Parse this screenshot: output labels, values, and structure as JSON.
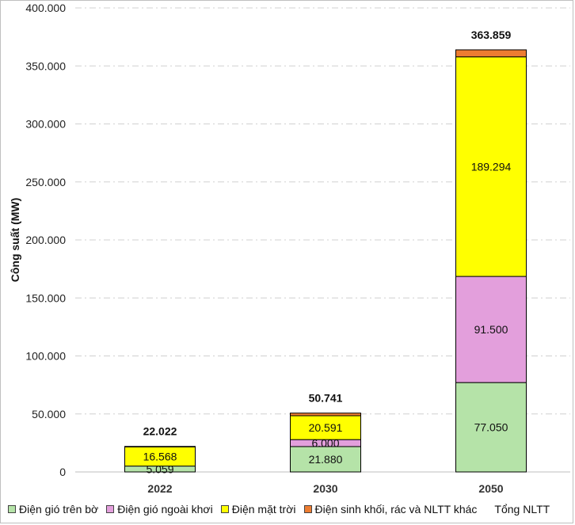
{
  "chart_data": {
    "type": "bar",
    "stacked": true,
    "title": "",
    "xlabel": "",
    "ylabel": "Công suất (MW)",
    "ylim": [
      0,
      400000
    ],
    "yticks": [
      0,
      50000,
      100000,
      150000,
      200000,
      250000,
      300000,
      350000,
      400000
    ],
    "ytick_labels": [
      "0",
      "50.000",
      "100.000",
      "150.000",
      "200.000",
      "250.000",
      "300.000",
      "350.000",
      "400.000"
    ],
    "grid": true,
    "legend_position": "bottom",
    "categories": [
      "2022",
      "2030",
      "2050"
    ],
    "series": [
      {
        "name": "Điện gió trên bờ",
        "color": "#b5e3a8",
        "values": [
          5059,
          21880,
          77050
        ],
        "labels": [
          "5.059",
          "21.880",
          "77.050"
        ]
      },
      {
        "name": "Điện gió ngoài khơi",
        "color": "#e39fdc",
        "values": [
          0,
          6000,
          91500
        ],
        "labels": [
          "",
          "6.000",
          "91.500"
        ]
      },
      {
        "name": "Điện mặt trời",
        "color": "#ffff00",
        "values": [
          16568,
          20591,
          189294
        ],
        "labels": [
          "16.568",
          "20.591",
          "189.294"
        ]
      },
      {
        "name": "Điện sinh khối, rác và NLTT khác",
        "color": "#ed7d31",
        "values": [
          395,
          2270,
          6015
        ],
        "labels": [
          "",
          "",
          ""
        ]
      }
    ],
    "totals": {
      "name": "Tổng NLTT",
      "values": [
        22022,
        50741,
        363859
      ],
      "labels": [
        "22.022",
        "50.741",
        "363.859"
      ]
    }
  }
}
